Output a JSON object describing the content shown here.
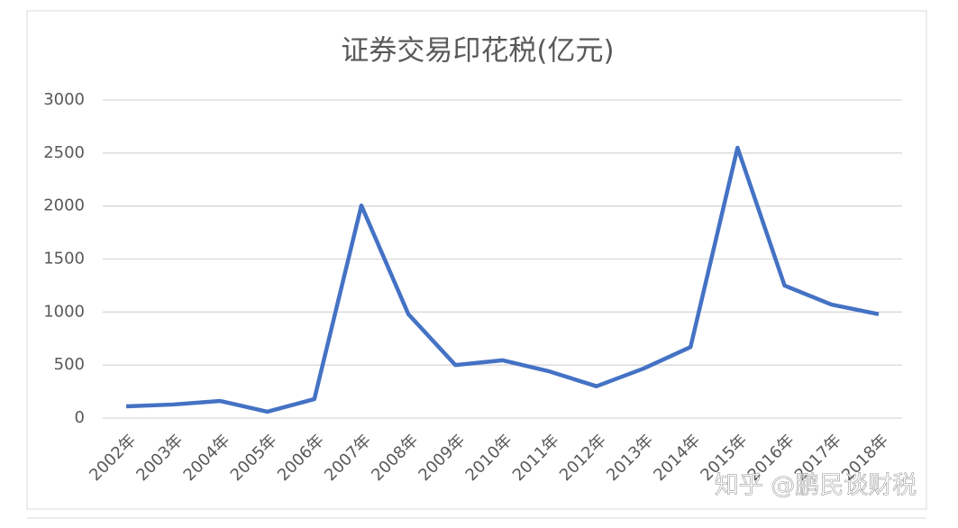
{
  "chart_data": {
    "type": "line",
    "title": "证券交易印花税(亿元)",
    "categories": [
      "2002年",
      "2003年",
      "2004年",
      "2005年",
      "2006年",
      "2007年",
      "2008年",
      "2009年",
      "2010年",
      "2011年",
      "2012年",
      "2013年",
      "2014年",
      "2015年",
      "2016年",
      "2017年",
      "2018年"
    ],
    "series": [
      {
        "name": "证券交易印花税",
        "color": "#4472c4",
        "values": [
          110,
          128,
          161,
          60,
          179,
          2005,
          980,
          500,
          545,
          440,
          300,
          467,
          670,
          2550,
          1250,
          1070,
          980
        ]
      }
    ],
    "ylim": [
      0,
      3000
    ],
    "yticks": [
      0,
      500,
      1000,
      1500,
      2000,
      2500,
      3000
    ],
    "grid": true
  },
  "watermark": "知乎 @鹏民谈财税"
}
